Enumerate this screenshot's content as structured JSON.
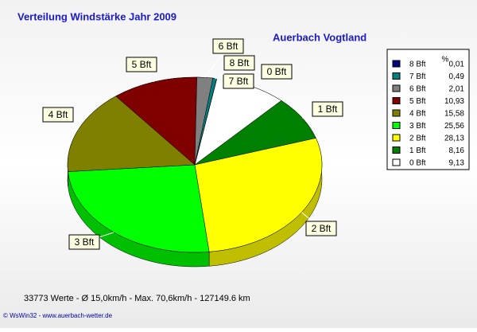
{
  "chart_data": {
    "type": "pie",
    "title": "Verteilung Windstärke  Jahr 2009",
    "subtitle": "Auerbach Vogtland",
    "legend_title": "%",
    "categories": [
      "0 Bft",
      "1 Bft",
      "2 Bft",
      "3 Bft",
      "4 Bft",
      "5 Bft",
      "6 Bft",
      "7 Bft",
      "8 Bft"
    ],
    "values": [
      9.13,
      8.16,
      28.13,
      25.56,
      15.58,
      10.93,
      2.01,
      0.49,
      0.01
    ],
    "value_labels": [
      "9,13",
      "8,16",
      "28,13",
      "25,56",
      "15,58",
      "10,93",
      "2,01",
      "0,49",
      "0,01"
    ],
    "colors": [
      "#ffffff",
      "#008000",
      "#ffff00",
      "#00ff00",
      "#808000",
      "#800000",
      "#808080",
      "#008080",
      "#000080"
    ],
    "legend": "right",
    "footer": "33773 Werte   -   Ø 15,0km/h  -  Max. 70,6km/h  -   127149.6 km",
    "credit": "© WsWin32  -  www.auerbach-wetter.de"
  }
}
